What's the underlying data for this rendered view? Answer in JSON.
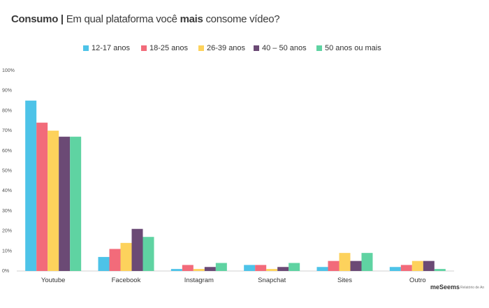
{
  "header": {
    "title_bold": "Consumo |",
    "title_pre": " Em qual plataforma você ",
    "title_emph": "mais",
    "title_post": " consome vídeo?"
  },
  "footer": {
    "brand": "meSeems",
    "note": "Relatório de An"
  },
  "chart_data": {
    "type": "bar",
    "title": "",
    "xlabel": "",
    "ylabel": "",
    "ylim": [
      0,
      100
    ],
    "yticks": [
      "0%",
      "10%",
      "20%",
      "30%",
      "40%",
      "50%",
      "60%",
      "70%",
      "80%",
      "90%",
      "100%"
    ],
    "grid": false,
    "legend_position": "top",
    "categories": [
      "Youtube",
      "Facebook",
      "Instagram",
      "Snapchat",
      "Sites",
      "Outro"
    ],
    "series": [
      {
        "name": "12-17 anos",
        "color": "#4dc3e8",
        "values": [
          85,
          7,
          1,
          3,
          2,
          2
        ]
      },
      {
        "name": "18-25 anos",
        "color": "#f26b7a",
        "values": [
          74,
          11,
          3,
          3,
          5,
          3
        ]
      },
      {
        "name": "26-39 anos",
        "color": "#fdd25c",
        "values": [
          70,
          14,
          1,
          1,
          9,
          5
        ]
      },
      {
        "name": "40 – 50 anos",
        "color": "#6b4a75",
        "values": [
          67,
          21,
          2,
          2,
          5,
          5
        ]
      },
      {
        "name": "50 anos ou mais",
        "color": "#5fd3a2",
        "values": [
          67,
          17,
          4,
          4,
          9,
          1
        ]
      }
    ]
  }
}
